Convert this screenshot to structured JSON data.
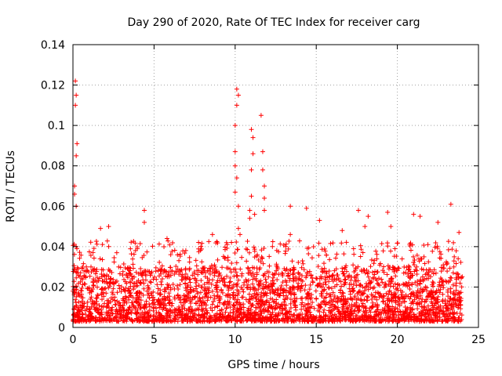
{
  "chart_data": {
    "type": "scatter",
    "title": "Day 290 of 2020, Rate Of TEC Index for receiver carg",
    "xlabel": "GPS time / hours",
    "ylabel": "ROTI / TECUs",
    "xlim": [
      0,
      25
    ],
    "ylim": [
      0,
      0.14
    ],
    "x_ticks": [
      0,
      5,
      10,
      15,
      20,
      25
    ],
    "x_tick_labels": [
      "0",
      "5",
      "10",
      "15",
      "20",
      "25"
    ],
    "y_ticks": [
      0,
      0.02,
      0.04,
      0.06,
      0.08,
      0.1,
      0.12,
      0.14
    ],
    "y_tick_labels": [
      "0",
      "0.02",
      "0.04",
      "0.06",
      "0.08",
      "0.1",
      "0.12",
      "0.14"
    ],
    "grid": true,
    "marker": "plus",
    "color": "#ff0000",
    "x_data_range": [
      0,
      24
    ],
    "typical_range": [
      0.003,
      0.03
    ],
    "notable_points": [
      {
        "x": 0.15,
        "y": 0.122
      },
      {
        "x": 0.2,
        "y": 0.115
      },
      {
        "x": 0.15,
        "y": 0.11
      },
      {
        "x": 0.25,
        "y": 0.091
      },
      {
        "x": 0.2,
        "y": 0.085
      },
      {
        "x": 0.1,
        "y": 0.07
      },
      {
        "x": 0.1,
        "y": 0.066
      },
      {
        "x": 0.2,
        "y": 0.06
      },
      {
        "x": 0.2,
        "y": 0.04
      },
      {
        "x": 1.7,
        "y": 0.049
      },
      {
        "x": 2.2,
        "y": 0.05
      },
      {
        "x": 4.4,
        "y": 0.058
      },
      {
        "x": 4.4,
        "y": 0.052
      },
      {
        "x": 5.8,
        "y": 0.044
      },
      {
        "x": 8.6,
        "y": 0.046
      },
      {
        "x": 10.1,
        "y": 0.118
      },
      {
        "x": 10.2,
        "y": 0.115
      },
      {
        "x": 10.1,
        "y": 0.11
      },
      {
        "x": 10.0,
        "y": 0.1
      },
      {
        "x": 10.0,
        "y": 0.087
      },
      {
        "x": 10.0,
        "y": 0.08
      },
      {
        "x": 10.1,
        "y": 0.074
      },
      {
        "x": 10.0,
        "y": 0.067
      },
      {
        "x": 10.2,
        "y": 0.06
      },
      {
        "x": 10.2,
        "y": 0.049
      },
      {
        "x": 10.3,
        "y": 0.046
      },
      {
        "x": 11.0,
        "y": 0.098
      },
      {
        "x": 11.1,
        "y": 0.094
      },
      {
        "x": 11.1,
        "y": 0.086
      },
      {
        "x": 11.0,
        "y": 0.078
      },
      {
        "x": 11.0,
        "y": 0.065
      },
      {
        "x": 10.9,
        "y": 0.058
      },
      {
        "x": 10.9,
        "y": 0.054
      },
      {
        "x": 11.2,
        "y": 0.056
      },
      {
        "x": 11.6,
        "y": 0.105
      },
      {
        "x": 11.7,
        "y": 0.087
      },
      {
        "x": 11.7,
        "y": 0.078
      },
      {
        "x": 11.8,
        "y": 0.07
      },
      {
        "x": 11.8,
        "y": 0.064
      },
      {
        "x": 11.8,
        "y": 0.058
      },
      {
        "x": 13.4,
        "y": 0.06
      },
      {
        "x": 13.4,
        "y": 0.046
      },
      {
        "x": 14.4,
        "y": 0.059
      },
      {
        "x": 15.2,
        "y": 0.053
      },
      {
        "x": 16.6,
        "y": 0.048
      },
      {
        "x": 17.6,
        "y": 0.058
      },
      {
        "x": 18.2,
        "y": 0.055
      },
      {
        "x": 18.0,
        "y": 0.05
      },
      {
        "x": 19.4,
        "y": 0.057
      },
      {
        "x": 19.6,
        "y": 0.05
      },
      {
        "x": 21.0,
        "y": 0.056
      },
      {
        "x": 21.4,
        "y": 0.055
      },
      {
        "x": 23.3,
        "y": 0.061
      },
      {
        "x": 23.8,
        "y": 0.047
      },
      {
        "x": 22.5,
        "y": 0.052
      }
    ]
  }
}
